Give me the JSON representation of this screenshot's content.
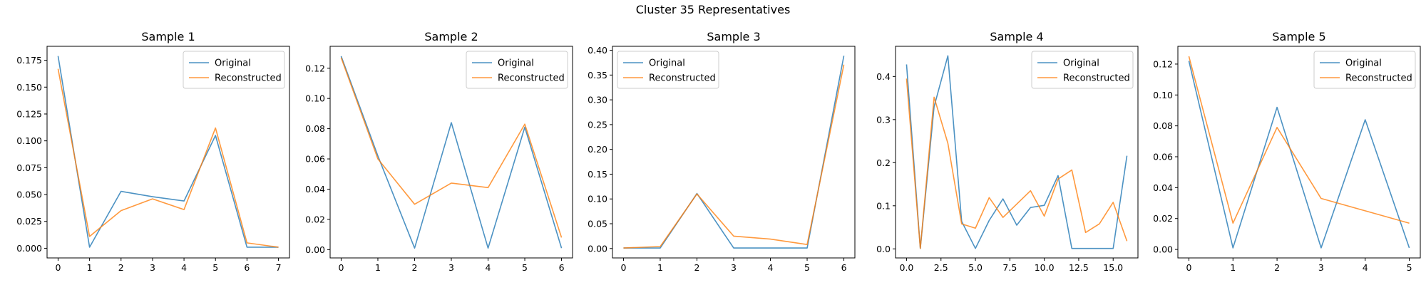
{
  "figure": {
    "title": "Cluster 35 Representatives"
  },
  "colors": {
    "original": "#1f77b4",
    "reconstructed": "#ff7f0e",
    "axes": "#000000",
    "legend_border": "#cccccc"
  },
  "chart_data": [
    {
      "type": "line",
      "title": "Sample 1",
      "x": [
        0,
        1,
        2,
        3,
        4,
        5,
        6,
        7
      ],
      "series": [
        {
          "name": "Original",
          "values": [
            0.179,
            0.001,
            0.053,
            0.048,
            0.044,
            0.105,
            0.001,
            0.001
          ]
        },
        {
          "name": "Reconstructed",
          "values": [
            0.167,
            0.011,
            0.035,
            0.046,
            0.036,
            0.112,
            0.005,
            0.001
          ]
        }
      ],
      "xlim": [
        -0.35,
        7.35
      ],
      "ylim": [
        -0.009,
        0.188
      ],
      "xticks": [
        0,
        1,
        2,
        3,
        4,
        5,
        6,
        7
      ],
      "xtick_labels": [
        "0",
        "1",
        "2",
        "3",
        "4",
        "5",
        "6",
        "7"
      ],
      "yticks": [
        0,
        0.025,
        0.05,
        0.075,
        0.1,
        0.125,
        0.15,
        0.175
      ],
      "ytick_labels": [
        "0.000",
        "0.025",
        "0.050",
        "0.075",
        "0.100",
        "0.125",
        "0.150",
        "0.175"
      ],
      "legend": "upper right"
    },
    {
      "type": "line",
      "title": "Sample 2",
      "x": [
        0,
        1,
        2,
        3,
        4,
        5,
        6
      ],
      "series": [
        {
          "name": "Original",
          "values": [
            0.128,
            0.062,
            0.001,
            0.084,
            0.001,
            0.081,
            0.001
          ]
        },
        {
          "name": "Reconstructed",
          "values": [
            0.127,
            0.06,
            0.03,
            0.044,
            0.041,
            0.083,
            0.008
          ]
        }
      ],
      "xlim": [
        -0.3,
        6.3
      ],
      "ylim": [
        -0.0055,
        0.1345
      ],
      "xticks": [
        0,
        1,
        2,
        3,
        4,
        5,
        6
      ],
      "xtick_labels": [
        "0",
        "1",
        "2",
        "3",
        "4",
        "5",
        "6"
      ],
      "yticks": [
        0,
        0.02,
        0.04,
        0.06,
        0.08,
        0.1,
        0.12
      ],
      "ytick_labels": [
        "0.00",
        "0.02",
        "0.04",
        "0.06",
        "0.08",
        "0.10",
        "0.12"
      ],
      "legend": "upper right"
    },
    {
      "type": "line",
      "title": "Sample 3",
      "x": [
        0,
        1,
        2,
        3,
        4,
        5,
        6
      ],
      "series": [
        {
          "name": "Original",
          "values": [
            0.001,
            0.001,
            0.111,
            0.001,
            0.001,
            0.001,
            0.389
          ]
        },
        {
          "name": "Reconstructed",
          "values": [
            0.001,
            0.004,
            0.11,
            0.025,
            0.019,
            0.008,
            0.371
          ]
        }
      ],
      "xlim": [
        -0.3,
        6.3
      ],
      "ylim": [
        -0.019,
        0.408
      ],
      "xticks": [
        0,
        1,
        2,
        3,
        4,
        5,
        6
      ],
      "xtick_labels": [
        "0",
        "1",
        "2",
        "3",
        "4",
        "5",
        "6"
      ],
      "yticks": [
        0,
        0.05,
        0.1,
        0.15,
        0.2,
        0.25,
        0.3,
        0.35,
        0.4
      ],
      "ytick_labels": [
        "0.00",
        "0.05",
        "0.10",
        "0.15",
        "0.20",
        "0.25",
        "0.30",
        "0.35",
        "0.40"
      ],
      "legend": "upper left"
    },
    {
      "type": "line",
      "title": "Sample 4",
      "x": [
        0,
        1,
        2,
        3,
        4,
        5,
        6,
        7,
        8,
        9,
        10,
        11,
        12,
        13,
        14,
        15,
        16
      ],
      "series": [
        {
          "name": "Original",
          "values": [
            0.428,
            0.001,
            0.33,
            0.448,
            0.064,
            0.001,
            0.066,
            0.116,
            0.055,
            0.096,
            0.101,
            0.17,
            0.001,
            0.001,
            0.001,
            0.001,
            0.216
          ]
        },
        {
          "name": "Reconstructed",
          "values": [
            0.395,
            0.001,
            0.352,
            0.245,
            0.058,
            0.048,
            0.119,
            0.073,
            0.104,
            0.135,
            0.076,
            0.162,
            0.183,
            0.038,
            0.058,
            0.108,
            0.018
          ]
        }
      ],
      "xlim": [
        -0.8,
        16.8
      ],
      "ylim": [
        -0.021,
        0.47
      ],
      "xticks": [
        0,
        2.5,
        5,
        7.5,
        10,
        12.5,
        15
      ],
      "xtick_labels": [
        "0.0",
        "2.5",
        "5.0",
        "7.5",
        "10.0",
        "12.5",
        "15.0"
      ],
      "yticks": [
        0,
        0.1,
        0.2,
        0.3,
        0.4
      ],
      "ytick_labels": [
        "0.0",
        "0.1",
        "0.2",
        "0.3",
        "0.4"
      ],
      "legend": "upper right"
    },
    {
      "type": "line",
      "title": "Sample 5",
      "x": [
        0,
        1,
        2,
        3,
        4,
        5
      ],
      "series": [
        {
          "name": "Original",
          "values": [
            0.122,
            0.001,
            0.092,
            0.001,
            0.084,
            0.001
          ]
        },
        {
          "name": "Reconstructed",
          "values": [
            0.125,
            0.017,
            0.079,
            0.033,
            0.025,
            0.017
          ]
        }
      ],
      "xlim": [
        -0.25,
        5.25
      ],
      "ylim": [
        -0.0055,
        0.1315
      ],
      "xticks": [
        0,
        1,
        2,
        3,
        4,
        5
      ],
      "xtick_labels": [
        "0",
        "1",
        "2",
        "3",
        "4",
        "5"
      ],
      "yticks": [
        0,
        0.02,
        0.04,
        0.06,
        0.08,
        0.1,
        0.12
      ],
      "ytick_labels": [
        "0.00",
        "0.02",
        "0.04",
        "0.06",
        "0.08",
        "0.10",
        "0.12"
      ],
      "legend": "upper right"
    }
  ]
}
